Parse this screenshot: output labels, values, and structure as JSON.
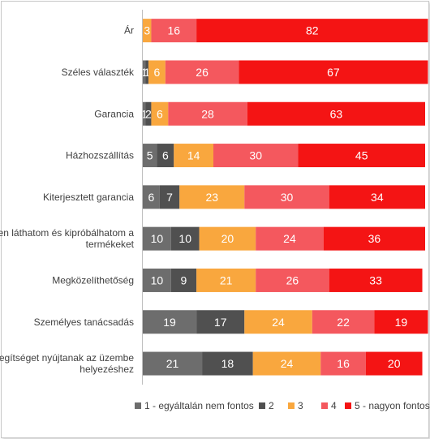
{
  "chart_data": {
    "type": "bar",
    "stacked": "horizontal-100",
    "categories": [
      "Ár",
      "Széles választék",
      "Garancia",
      "Házhozszállítás",
      "Kiterjesztett garancia",
      "Élőben láthatom és kipróbálhatom a termékeket",
      "Megközelíthetőség",
      "Személyes tanácsadás",
      "Segítséget nyújtanak az üzembe helyezéshez"
    ],
    "category_lines": [
      [
        "Ár"
      ],
      [
        "Széles választék"
      ],
      [
        "Garancia"
      ],
      [
        "Házhozszállítás"
      ],
      [
        "Kiterjesztett garancia"
      ],
      [
        "Élőben láthatom és kipróbálhatom a",
        "termékeket"
      ],
      [
        "Megközelíthetőség"
      ],
      [
        "Személyes tanácsadás"
      ],
      [
        "Segítséget nyújtanak az üzembe",
        "helyezéshez"
      ]
    ],
    "series": [
      {
        "name": "1 - egyáltalán nem fontos",
        "color": "#6d6d6d",
        "label_color": "#ffffff",
        "values": [
          0,
          1,
          1,
          5,
          6,
          10,
          10,
          19,
          21
        ]
      },
      {
        "name": "2",
        "color": "#505050",
        "label_color": "#ffffff",
        "values": [
          0,
          1,
          2,
          6,
          7,
          10,
          9,
          17,
          18
        ]
      },
      {
        "name": "3",
        "color": "#f9a73e",
        "label_color": "#ffffff",
        "values": [
          3,
          6,
          6,
          14,
          23,
          20,
          21,
          24,
          24
        ]
      },
      {
        "name": "4",
        "color": "#f4585e",
        "label_color": "#ffffff",
        "values": [
          16,
          26,
          28,
          30,
          30,
          24,
          26,
          22,
          16
        ]
      },
      {
        "name": "5 - nagyon fontos",
        "color": "#f41414",
        "label_color": "#ffffff",
        "values": [
          82,
          67,
          63,
          45,
          34,
          36,
          33,
          19,
          20
        ]
      }
    ],
    "xlim": [
      0,
      100
    ],
    "grid": false,
    "legend_position": "bottom"
  }
}
